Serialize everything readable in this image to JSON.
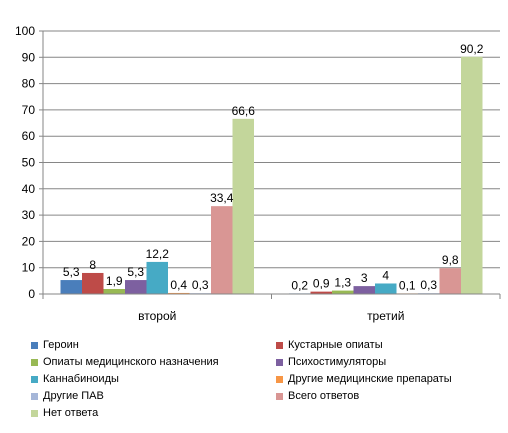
{
  "chart_data": {
    "type": "bar",
    "categories": [
      "второй",
      "третий"
    ],
    "series": [
      {
        "name": "Героин",
        "color": "#4a7ebb",
        "values": [
          5.3,
          0.2
        ],
        "labels": [
          "5,3",
          "0,2"
        ]
      },
      {
        "name": "Кустарные опиаты",
        "color": "#be4b48",
        "values": [
          8,
          0.9
        ],
        "labels": [
          "8",
          "0,9"
        ]
      },
      {
        "name": "Опиаты медицинского назначения",
        "color": "#98b954",
        "values": [
          1.9,
          1.3
        ],
        "labels": [
          "1,9",
          "1,3"
        ]
      },
      {
        "name": "Психостимуляторы",
        "color": "#7d60a0",
        "values": [
          5.3,
          3
        ],
        "labels": [
          "5,3",
          "3"
        ]
      },
      {
        "name": "Каннабиноиды",
        "color": "#46aac5",
        "values": [
          12.2,
          4
        ],
        "labels": [
          "12,2",
          "4"
        ]
      },
      {
        "name": "Другие медицинские препараты",
        "color": "#f79646",
        "values": [
          0.4,
          0.1
        ],
        "labels": [
          "0,4",
          "0,1"
        ]
      },
      {
        "name": "Другие ПАВ",
        "color": "#a5b6d8",
        "values": [
          0.3,
          0.3
        ],
        "labels": [
          "0,3",
          "0,3"
        ]
      },
      {
        "name": "Всего ответов",
        "color": "#d99694",
        "values": [
          33.4,
          9.8
        ],
        "labels": [
          "33,4",
          "9,8"
        ]
      },
      {
        "name": "Нет ответа",
        "color": "#c3d69b",
        "values": [
          66.6,
          90.2
        ],
        "labels": [
          "66,6",
          "90,2"
        ]
      }
    ],
    "ylim": [
      0,
      100
    ],
    "yticks": [
      "0",
      "10",
      "20",
      "30",
      "40",
      "50",
      "60",
      "70",
      "80",
      "90",
      "100"
    ],
    "grid": true,
    "legend_position": "bottom"
  }
}
